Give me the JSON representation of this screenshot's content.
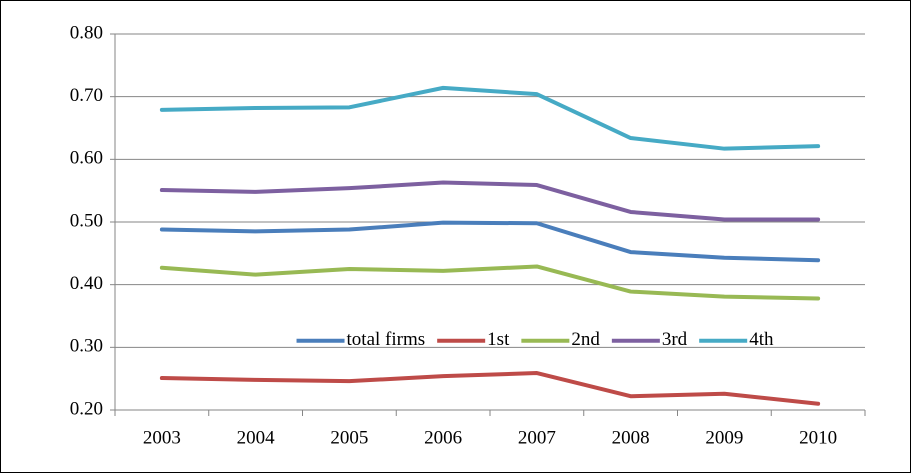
{
  "chart_data": {
    "type": "line",
    "categories": [
      "2003",
      "2004",
      "2005",
      "2006",
      "2007",
      "2008",
      "2009",
      "2010"
    ],
    "series": [
      {
        "name": "total firms",
        "color": "#4a7ebb",
        "values": [
          0.488,
          0.485,
          0.488,
          0.499,
          0.498,
          0.452,
          0.443,
          0.439
        ]
      },
      {
        "name": "1st",
        "color": "#be4b48",
        "values": [
          0.251,
          0.248,
          0.246,
          0.254,
          0.259,
          0.222,
          0.226,
          0.21
        ]
      },
      {
        "name": "2nd",
        "color": "#98b954",
        "values": [
          0.427,
          0.416,
          0.425,
          0.422,
          0.429,
          0.389,
          0.381,
          0.378
        ]
      },
      {
        "name": "3rd",
        "color": "#7d60a0",
        "values": [
          0.551,
          0.548,
          0.554,
          0.563,
          0.559,
          0.516,
          0.504,
          0.504
        ]
      },
      {
        "name": "4th",
        "color": "#46aac5",
        "values": [
          0.679,
          0.682,
          0.683,
          0.714,
          0.704,
          0.634,
          0.617,
          0.621
        ]
      }
    ],
    "ylim": [
      0.2,
      0.8
    ],
    "yticks": [
      {
        "value": 0.2,
        "label": "0.20"
      },
      {
        "value": 0.3,
        "label": "0.30"
      },
      {
        "value": 0.4,
        "label": "0.40"
      },
      {
        "value": 0.5,
        "label": "0.50"
      },
      {
        "value": 0.6,
        "label": "0.60"
      },
      {
        "value": 0.7,
        "label": "0.70"
      },
      {
        "value": 0.8,
        "label": "0.80"
      }
    ],
    "grid": true,
    "legend": "center"
  }
}
